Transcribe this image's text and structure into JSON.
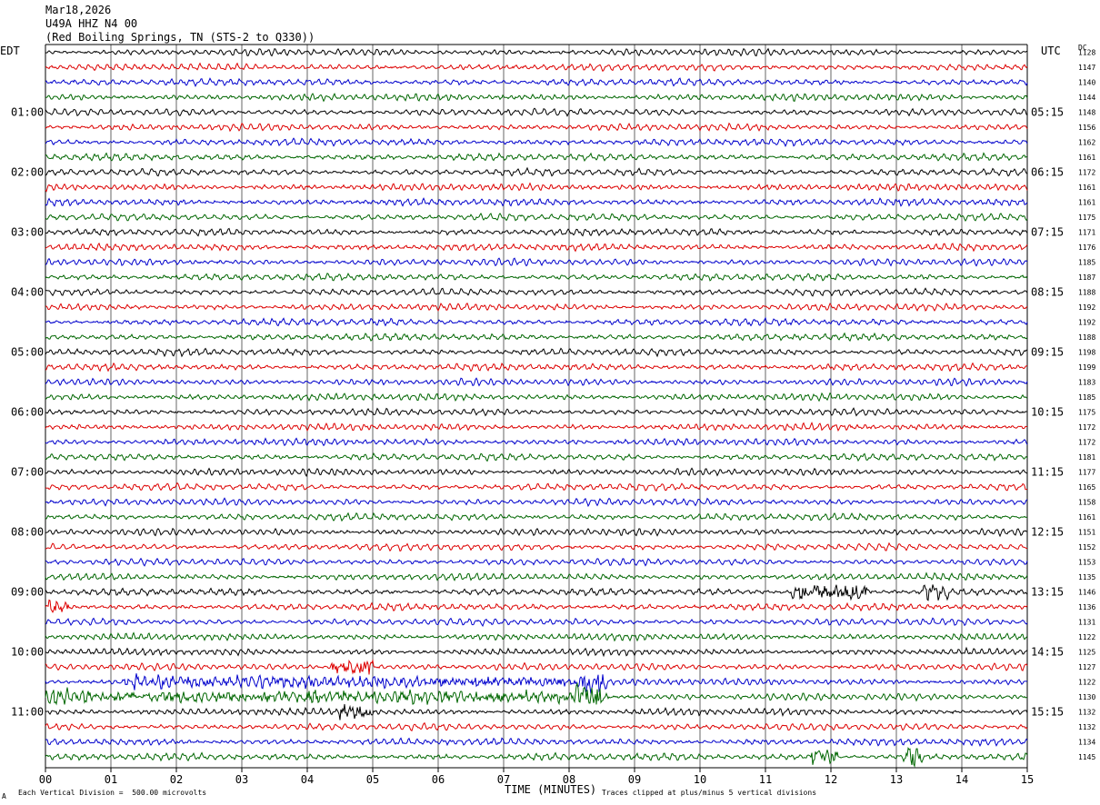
{
  "header": {
    "date": "Mar18,2026",
    "station": "U49A HHZ N4 00",
    "location": "(Red Boiling Springs, TN (STS-2 to Q330))"
  },
  "labels": {
    "left_zone": "EDT",
    "right_zone": "UTC",
    "dc_header": "DC",
    "x_axis_title": "TIME (MINUTES)",
    "scale_note": "Each Vertical Division =  500.00 microvolts",
    "clip_note": "Traces clipped at plus/minus 5 vertical divisions",
    "corner_mark": "A"
  },
  "colors": {
    "cycle": [
      "#000000",
      "#dd0000",
      "#0000cc",
      "#006600"
    ],
    "grid": "#000000",
    "background": "#ffffff"
  },
  "chart_data": {
    "type": "line",
    "title": "U49A HHZ N4 00",
    "xlabel": "TIME (MINUTES)",
    "xlim": [
      0,
      15
    ],
    "x_ticks": [
      "00",
      "01",
      "02",
      "03",
      "04",
      "05",
      "06",
      "07",
      "08",
      "09",
      "10",
      "11",
      "12",
      "13",
      "14",
      "15"
    ],
    "rows": 48,
    "minutes_per_row": 15,
    "left_hour_labels": [
      "01:00",
      "02:00",
      "03:00",
      "04:00",
      "05:00",
      "06:00",
      "07:00",
      "08:00",
      "09:00",
      "10:00",
      "11:00"
    ],
    "right_hour_labels": [
      "05:15",
      "06:15",
      "07:15",
      "08:15",
      "09:15",
      "10:15",
      "11:15",
      "12:15",
      "13:15",
      "14:15",
      "15:15"
    ],
    "dc_offsets": [
      1128,
      1147,
      1140,
      1144,
      1148,
      1156,
      1162,
      1161,
      1172,
      1161,
      1161,
      1175,
      1171,
      1176,
      1185,
      1187,
      1188,
      1192,
      1192,
      1188,
      1198,
      1199,
      1183,
      1185,
      1175,
      1172,
      1172,
      1181,
      1177,
      1165,
      1158,
      1161,
      1151,
      1152,
      1153,
      1135,
      1146,
      1136,
      1131,
      1122,
      1125,
      1127,
      1122,
      1130,
      1132,
      1132,
      1134,
      1145
    ],
    "events": [
      {
        "row": 36,
        "minute_start": 11.4,
        "minute_end": 12.6,
        "strength": 2.2
      },
      {
        "row": 36,
        "minute_start": 13.4,
        "minute_end": 13.8,
        "strength": 2.2
      },
      {
        "row": 37,
        "minute_start": 0.05,
        "minute_end": 0.35,
        "strength": 1.8
      },
      {
        "row": 41,
        "minute_start": 4.35,
        "minute_end": 5.0,
        "strength": 2.4
      },
      {
        "row": 42,
        "minute_start": 1.2,
        "minute_end": 8.6,
        "strength": 1.4
      },
      {
        "row": 42,
        "minute_start": 8.2,
        "minute_end": 8.6,
        "strength": 2.4
      },
      {
        "row": 43,
        "minute_start": 0.0,
        "minute_end": 8.6,
        "strength": 1.5
      },
      {
        "row": 43,
        "minute_start": 8.1,
        "minute_end": 8.5,
        "strength": 2.6
      },
      {
        "row": 44,
        "minute_start": 4.5,
        "minute_end": 5.0,
        "strength": 1.8
      },
      {
        "row": 47,
        "minute_start": 11.7,
        "minute_end": 12.1,
        "strength": 2.4
      },
      {
        "row": 47,
        "minute_start": 13.1,
        "minute_end": 13.4,
        "strength": 2.6
      }
    ]
  }
}
